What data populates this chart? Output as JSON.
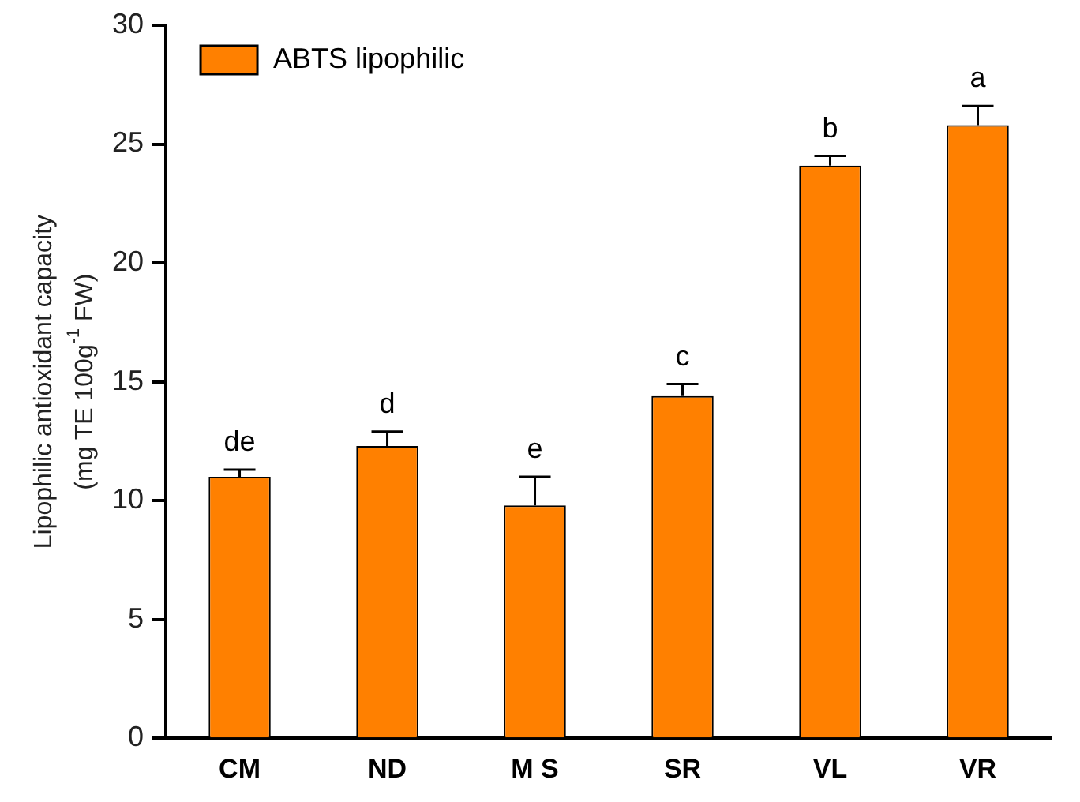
{
  "chart_data": {
    "type": "bar",
    "ylabel": "Lipophilic antioxidant capacity\n(mg TE 100g$^{-1}$ FW)",
    "categories": [
      "CM",
      "ND",
      "M S",
      "SR",
      "VL",
      "VR"
    ],
    "series": [
      {
        "name": "ABTS lipophilic",
        "color": "#ff8000",
        "values": [
          11.0,
          12.3,
          9.8,
          14.4,
          24.1,
          25.8
        ],
        "errors": [
          [
            11.0,
            11.3
          ],
          [
            12.3,
            12.9
          ],
          [
            9.8,
            11.0
          ],
          [
            14.4,
            14.9
          ],
          [
            24.1,
            24.5
          ],
          [
            25.8,
            26.6
          ]
        ]
      }
    ],
    "ylim": [
      0,
      30
    ],
    "yticks": [
      0,
      5,
      10,
      15,
      20,
      25,
      30
    ],
    "grid": false,
    "legend": "top left",
    "annotations": [
      {
        "text": "de",
        "x": "CM",
        "y": 11.3
      },
      {
        "text": "d",
        "x": "ND",
        "y": 12.9
      },
      {
        "text": "e",
        "x": "M S",
        "y": 11.0
      },
      {
        "text": "c",
        "x": "SR",
        "y": 14.9
      },
      {
        "text": "b",
        "x": "VL",
        "y": 24.5
      },
      {
        "text": "a",
        "x": "VR",
        "y": 26.6
      }
    ]
  }
}
